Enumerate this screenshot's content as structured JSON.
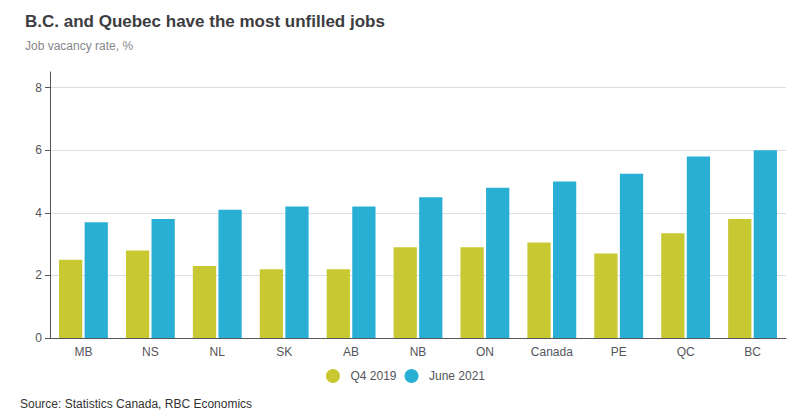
{
  "chart_data": {
    "type": "bar",
    "title": "B.C. and Quebec have the most unfilled jobs",
    "subtitle": "Job vacancy rate, %",
    "annotations": [
      "Source: Statistics Canada, RBC Economics"
    ],
    "categories": [
      "MB",
      "NS",
      "NL",
      "SK",
      "AB",
      "NB",
      "ON",
      "Canada",
      "PE",
      "QC",
      "BC"
    ],
    "series": [
      {
        "name": "Q4 2019",
        "color": "#c8c832",
        "values": [
          2.5,
          2.8,
          2.3,
          2.2,
          2.2,
          2.9,
          2.9,
          3.05,
          2.7,
          3.35,
          3.8
        ]
      },
      {
        "name": "June 2021",
        "color": "#29afd4",
        "values": [
          3.7,
          3.8,
          4.1,
          4.2,
          4.2,
          4.5,
          4.8,
          5.0,
          5.25,
          5.8,
          6.0
        ]
      }
    ],
    "ylim": [
      0,
      8.5
    ],
    "yticks": [
      0,
      2,
      4,
      6,
      8
    ],
    "grid": true,
    "legend": "bottom"
  }
}
